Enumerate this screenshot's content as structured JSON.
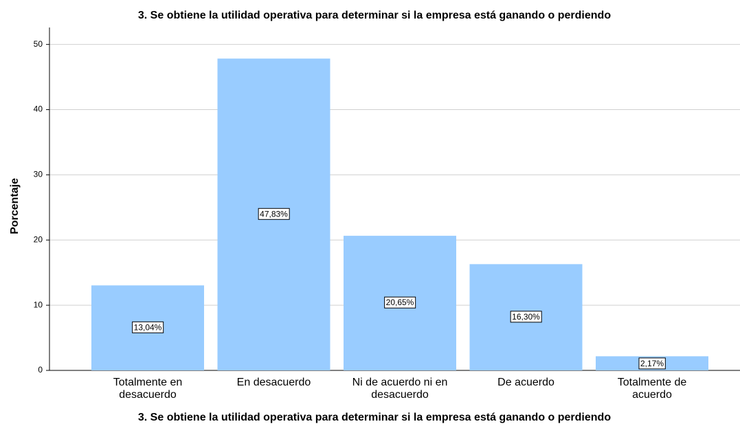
{
  "chart_data": {
    "type": "bar",
    "title": "3. Se obtiene la utilidad operativa para determinar si la empresa está ganando o perdiendo",
    "x_label": "3. Se obtiene la utilidad operativa para determinar si la empresa está ganando o perdiendo",
    "y_label": "Porcentaje",
    "categories": [
      "Totalmente en desacuerdo",
      "En desacuerdo",
      "Ni de acuerdo ni en desacuerdo",
      "De acuerdo",
      "Totalmente de acuerdo"
    ],
    "values": [
      13.04,
      47.83,
      20.65,
      16.3,
      2.17
    ],
    "value_labels": [
      "13,04%",
      "47,83%",
      "20,65%",
      "16,30%",
      "2,17%"
    ],
    "color": "#99ccff",
    "ylim": [
      0,
      52.6
    ],
    "yticks": [
      0,
      10,
      20,
      30,
      40,
      50
    ],
    "grid": true
  }
}
